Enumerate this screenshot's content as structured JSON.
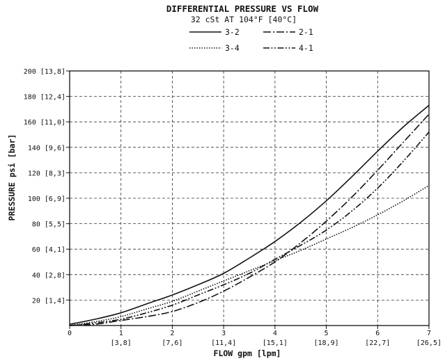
{
  "chart_data": {
    "type": "line",
    "title": "DIFFERENTIAL PRESSURE VS FLOW",
    "subtitle": "32 cSt AT 104°F [40°C]",
    "xlabel": "FLOW gpm [lpm]",
    "ylabel": "PRESSURE psi [bar]",
    "xlim": [
      0,
      7
    ],
    "ylim": [
      0,
      200
    ],
    "grid": true,
    "legend_position": "top",
    "x_ticks": [
      {
        "value": 0,
        "label": "0",
        "sublabel": ""
      },
      {
        "value": 1,
        "label": "1",
        "sublabel": "[3,8]"
      },
      {
        "value": 2,
        "label": "2",
        "sublabel": "[7,6]"
      },
      {
        "value": 3,
        "label": "3",
        "sublabel": "[11,4]"
      },
      {
        "value": 4,
        "label": "4",
        "sublabel": "[15,1]"
      },
      {
        "value": 5,
        "label": "5",
        "sublabel": "[18,9]"
      },
      {
        "value": 6,
        "label": "6",
        "sublabel": "[22,7]"
      },
      {
        "value": 7,
        "label": "7",
        "sublabel": "[26,5]"
      }
    ],
    "y_ticks": [
      {
        "value": 20,
        "label": "20 [1,4]"
      },
      {
        "value": 40,
        "label": "40 [2,8]"
      },
      {
        "value": 60,
        "label": "60 [4,1]"
      },
      {
        "value": 80,
        "label": "80 [5,5]"
      },
      {
        "value": 100,
        "label": "100 [6,9]"
      },
      {
        "value": 120,
        "label": "120 [8,3]"
      },
      {
        "value": 140,
        "label": "140 [9,6]"
      },
      {
        "value": 160,
        "label": "160 [11,0]"
      },
      {
        "value": 180,
        "label": "180 [12,4]"
      },
      {
        "value": 200,
        "label": "200 [13,8]"
      }
    ],
    "series": [
      {
        "name": "3-2",
        "style": "solid",
        "x": [
          0,
          0.5,
          1,
          1.5,
          2,
          2.5,
          3,
          3.5,
          4,
          4.5,
          5,
          5.5,
          6,
          6.5,
          7
        ],
        "values": [
          1,
          5,
          10,
          17,
          24,
          32,
          41,
          53,
          66,
          81,
          98,
          117,
          137,
          156,
          173
        ]
      },
      {
        "name": "2-1",
        "style": "dashdot",
        "x": [
          0,
          0.5,
          1,
          1.5,
          2,
          2.5,
          3,
          3.5,
          4,
          4.5,
          5,
          5.5,
          6,
          6.5,
          7
        ],
        "values": [
          0,
          1,
          4,
          7,
          11,
          18,
          27,
          38,
          50,
          65,
          82,
          101,
          122,
          144,
          166
        ]
      },
      {
        "name": "3-4",
        "style": "dotted",
        "x": [
          0,
          0.5,
          1,
          1.5,
          2,
          2.5,
          3,
          3.5,
          4,
          4.5,
          5,
          5.5,
          6,
          6.5,
          7
        ],
        "values": [
          0,
          3,
          7,
          13,
          19,
          27,
          35,
          43,
          51,
          59,
          68,
          77,
          87,
          98,
          110
        ]
      },
      {
        "name": "4-1",
        "style": "dashdotdot",
        "x": [
          0,
          0.5,
          1,
          1.5,
          2,
          2.5,
          3,
          3.5,
          4,
          4.5,
          5,
          5.5,
          6,
          6.5,
          7
        ],
        "values": [
          0,
          2,
          5,
          10,
          16,
          24,
          32,
          41,
          52,
          63,
          75,
          90,
          108,
          129,
          152
        ]
      }
    ]
  }
}
